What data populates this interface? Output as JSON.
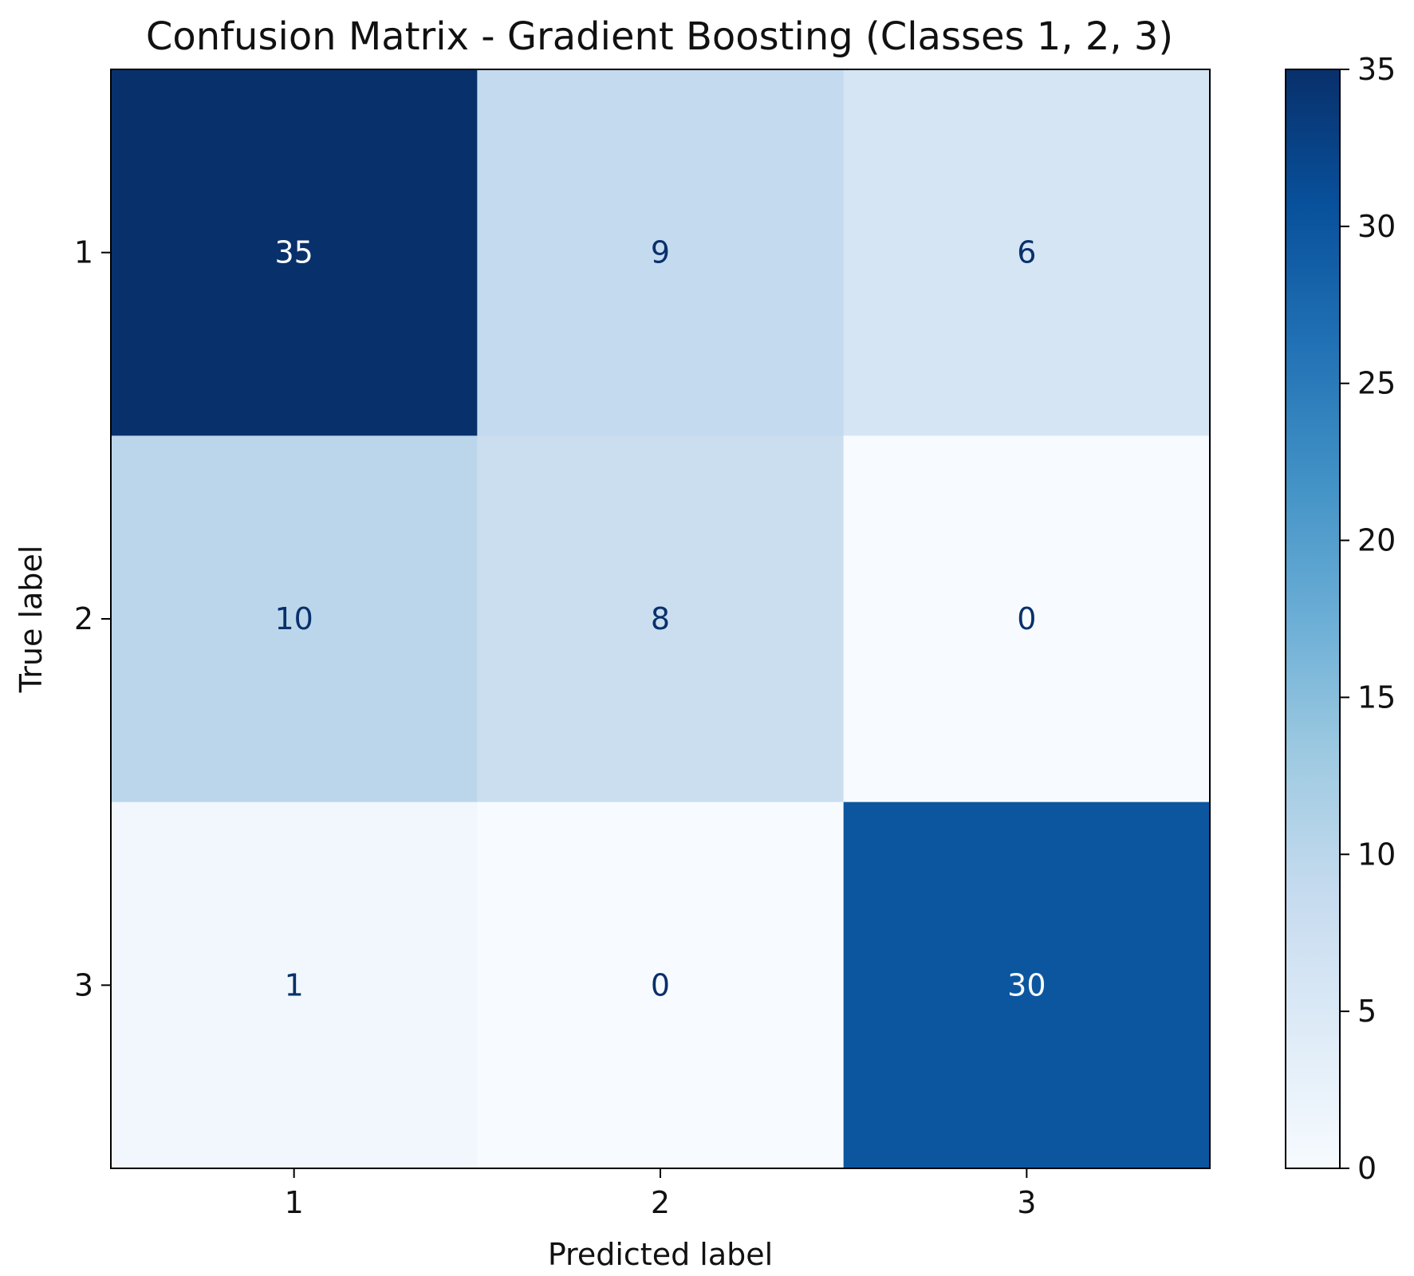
{
  "chart_data": {
    "type": "heatmap",
    "title": "Confusion Matrix - Gradient Boosting (Classes 1, 2, 3)",
    "xlabel": "Predicted label",
    "ylabel": "True label",
    "x_categories": [
      "1",
      "2",
      "3"
    ],
    "y_categories": [
      "1",
      "2",
      "3"
    ],
    "values": [
      [
        35,
        9,
        6
      ],
      [
        10,
        8,
        0
      ],
      [
        1,
        0,
        30
      ]
    ],
    "colormap": "Blues",
    "color_range": [
      0,
      35
    ],
    "colorbar_ticks": [
      0,
      5,
      10,
      15,
      20,
      25,
      30,
      35
    ],
    "grid": false
  }
}
